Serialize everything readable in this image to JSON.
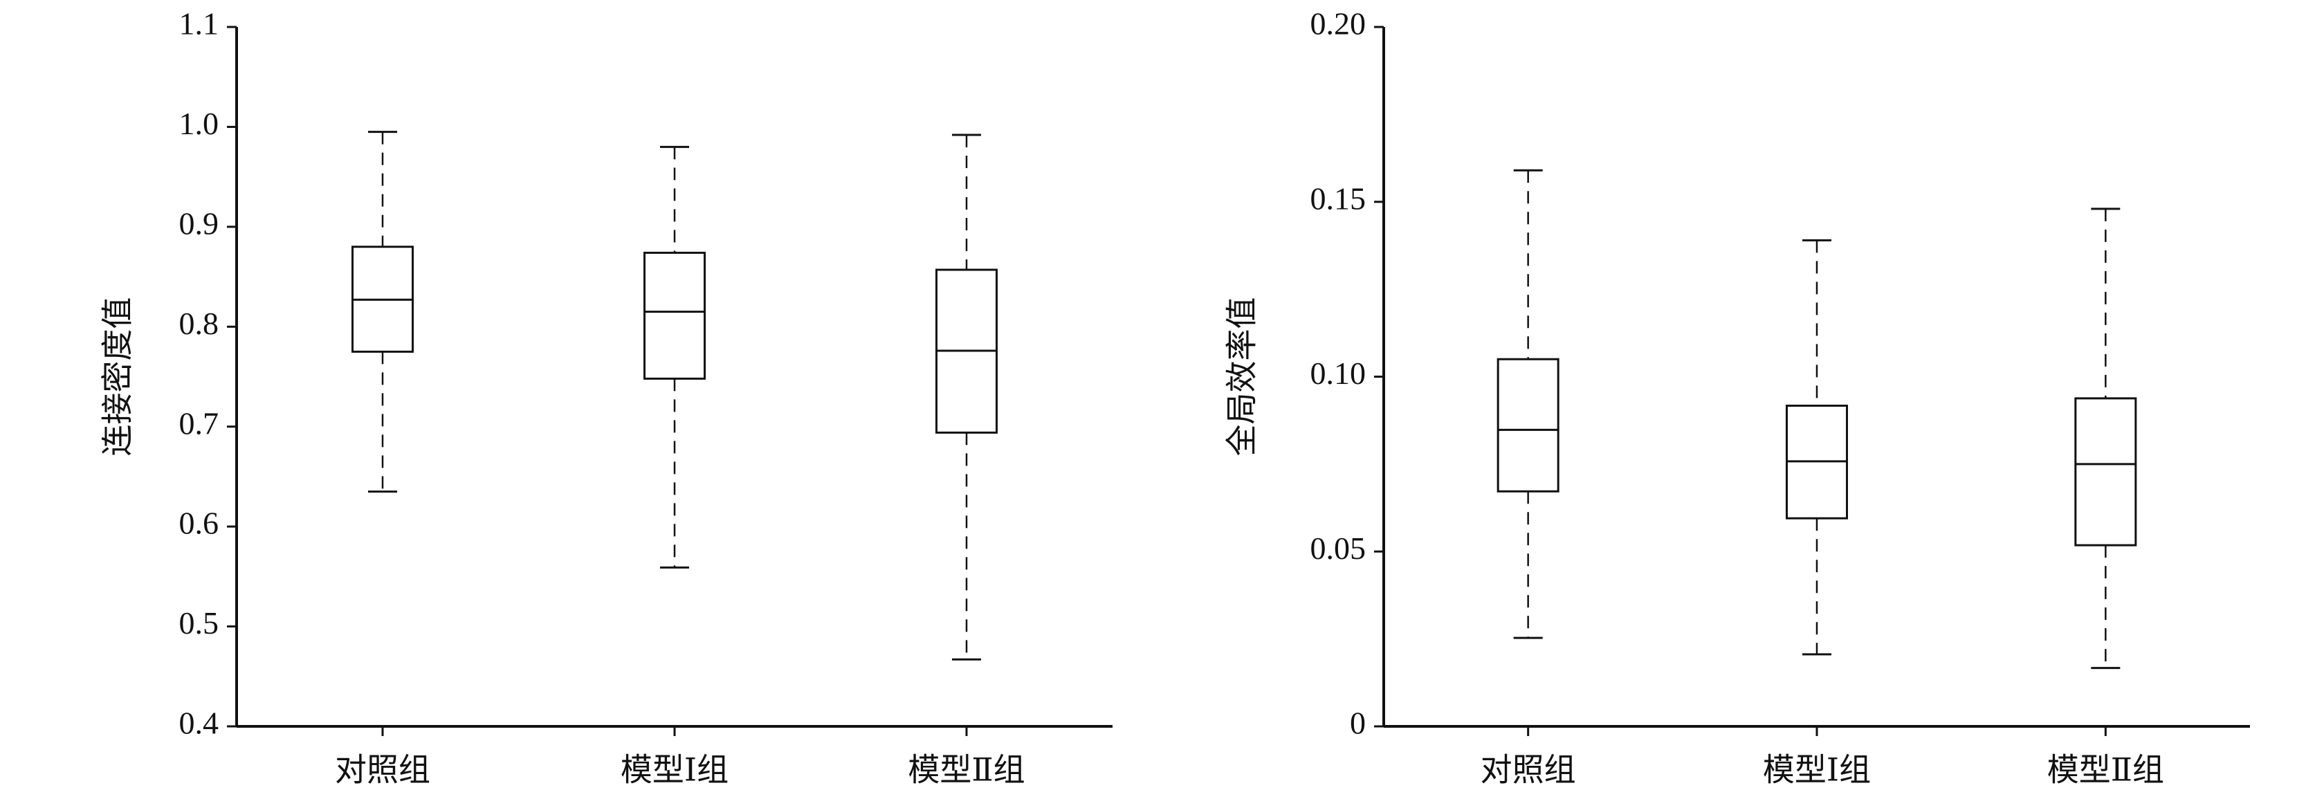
{
  "chart_data": [
    {
      "type": "box",
      "y_label": "连接密度值",
      "categories": [
        "对照组",
        "模型Ⅰ组",
        "模型Ⅱ组"
      ],
      "boxes": [
        {
          "low": 0.635,
          "q1": 0.775,
          "median": 0.827,
          "q3": 0.88,
          "high": 0.995
        },
        {
          "low": 0.559,
          "q1": 0.748,
          "median": 0.815,
          "q3": 0.874,
          "high": 0.98
        },
        {
          "low": 0.467,
          "q1": 0.694,
          "median": 0.776,
          "q3": 0.857,
          "high": 0.992
        }
      ],
      "ylim": [
        0.4,
        1.1
      ],
      "yticks": [
        0.4,
        0.5,
        0.6,
        0.7,
        0.8,
        0.9,
        {
          "value": 1,
          "label": "1.0"
        },
        1.1
      ]
    },
    {
      "type": "box",
      "y_label": "全局效率值",
      "categories": [
        "对照组",
        "模型Ⅰ组",
        "模型Ⅱ组"
      ],
      "boxes": [
        {
          "low": 0.0253,
          "q1": 0.0672,
          "median": 0.0848,
          "q3": 0.105,
          "high": 0.159
        },
        {
          "low": 0.0206,
          "q1": 0.0595,
          "median": 0.0758,
          "q3": 0.0917,
          "high": 0.139
        },
        {
          "low": 0.0167,
          "q1": 0.0518,
          "median": 0.075,
          "q3": 0.0938,
          "high": 0.148
        }
      ],
      "ylim": [
        0,
        0.2
      ],
      "yticks": [
        0,
        0.05,
        {
          "value": 0.1,
          "label": "0.10"
        },
        0.15,
        {
          "value": 0.2,
          "label": "0.20"
        }
      ]
    }
  ]
}
